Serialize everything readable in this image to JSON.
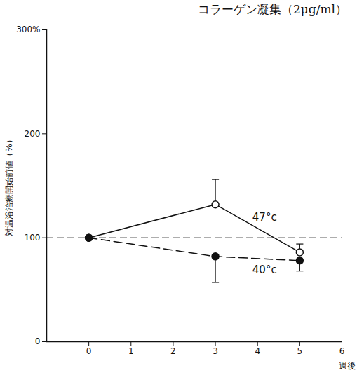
{
  "chart_data": {
    "type": "line",
    "title": "コラーゲン凝集（2μg/ml）",
    "x_label": "週後",
    "y_label": "対温浴治療開始前値（%）",
    "x": [
      0,
      3,
      5
    ],
    "series": [
      {
        "name": "47°c",
        "color": "#111111",
        "marker": "open_circle",
        "line_style": "solid",
        "values": [
          100,
          132,
          86
        ],
        "error_upper": [
          null,
          24,
          8
        ]
      },
      {
        "name": "40°c",
        "color": "#111111",
        "marker": "filled_circle",
        "line_style": "dashed",
        "values": [
          100,
          82,
          78
        ],
        "error_lower": [
          null,
          25,
          10
        ]
      }
    ],
    "reference_line": 100,
    "xlim": [
      -1,
      6
    ],
    "xticks": [
      0,
      1,
      2,
      3,
      4,
      5,
      6
    ],
    "ylim": [
      0,
      300
    ],
    "yticks": [
      0,
      100,
      200,
      {
        "value": 300,
        "label": "300%"
      }
    ],
    "grid": false
  }
}
